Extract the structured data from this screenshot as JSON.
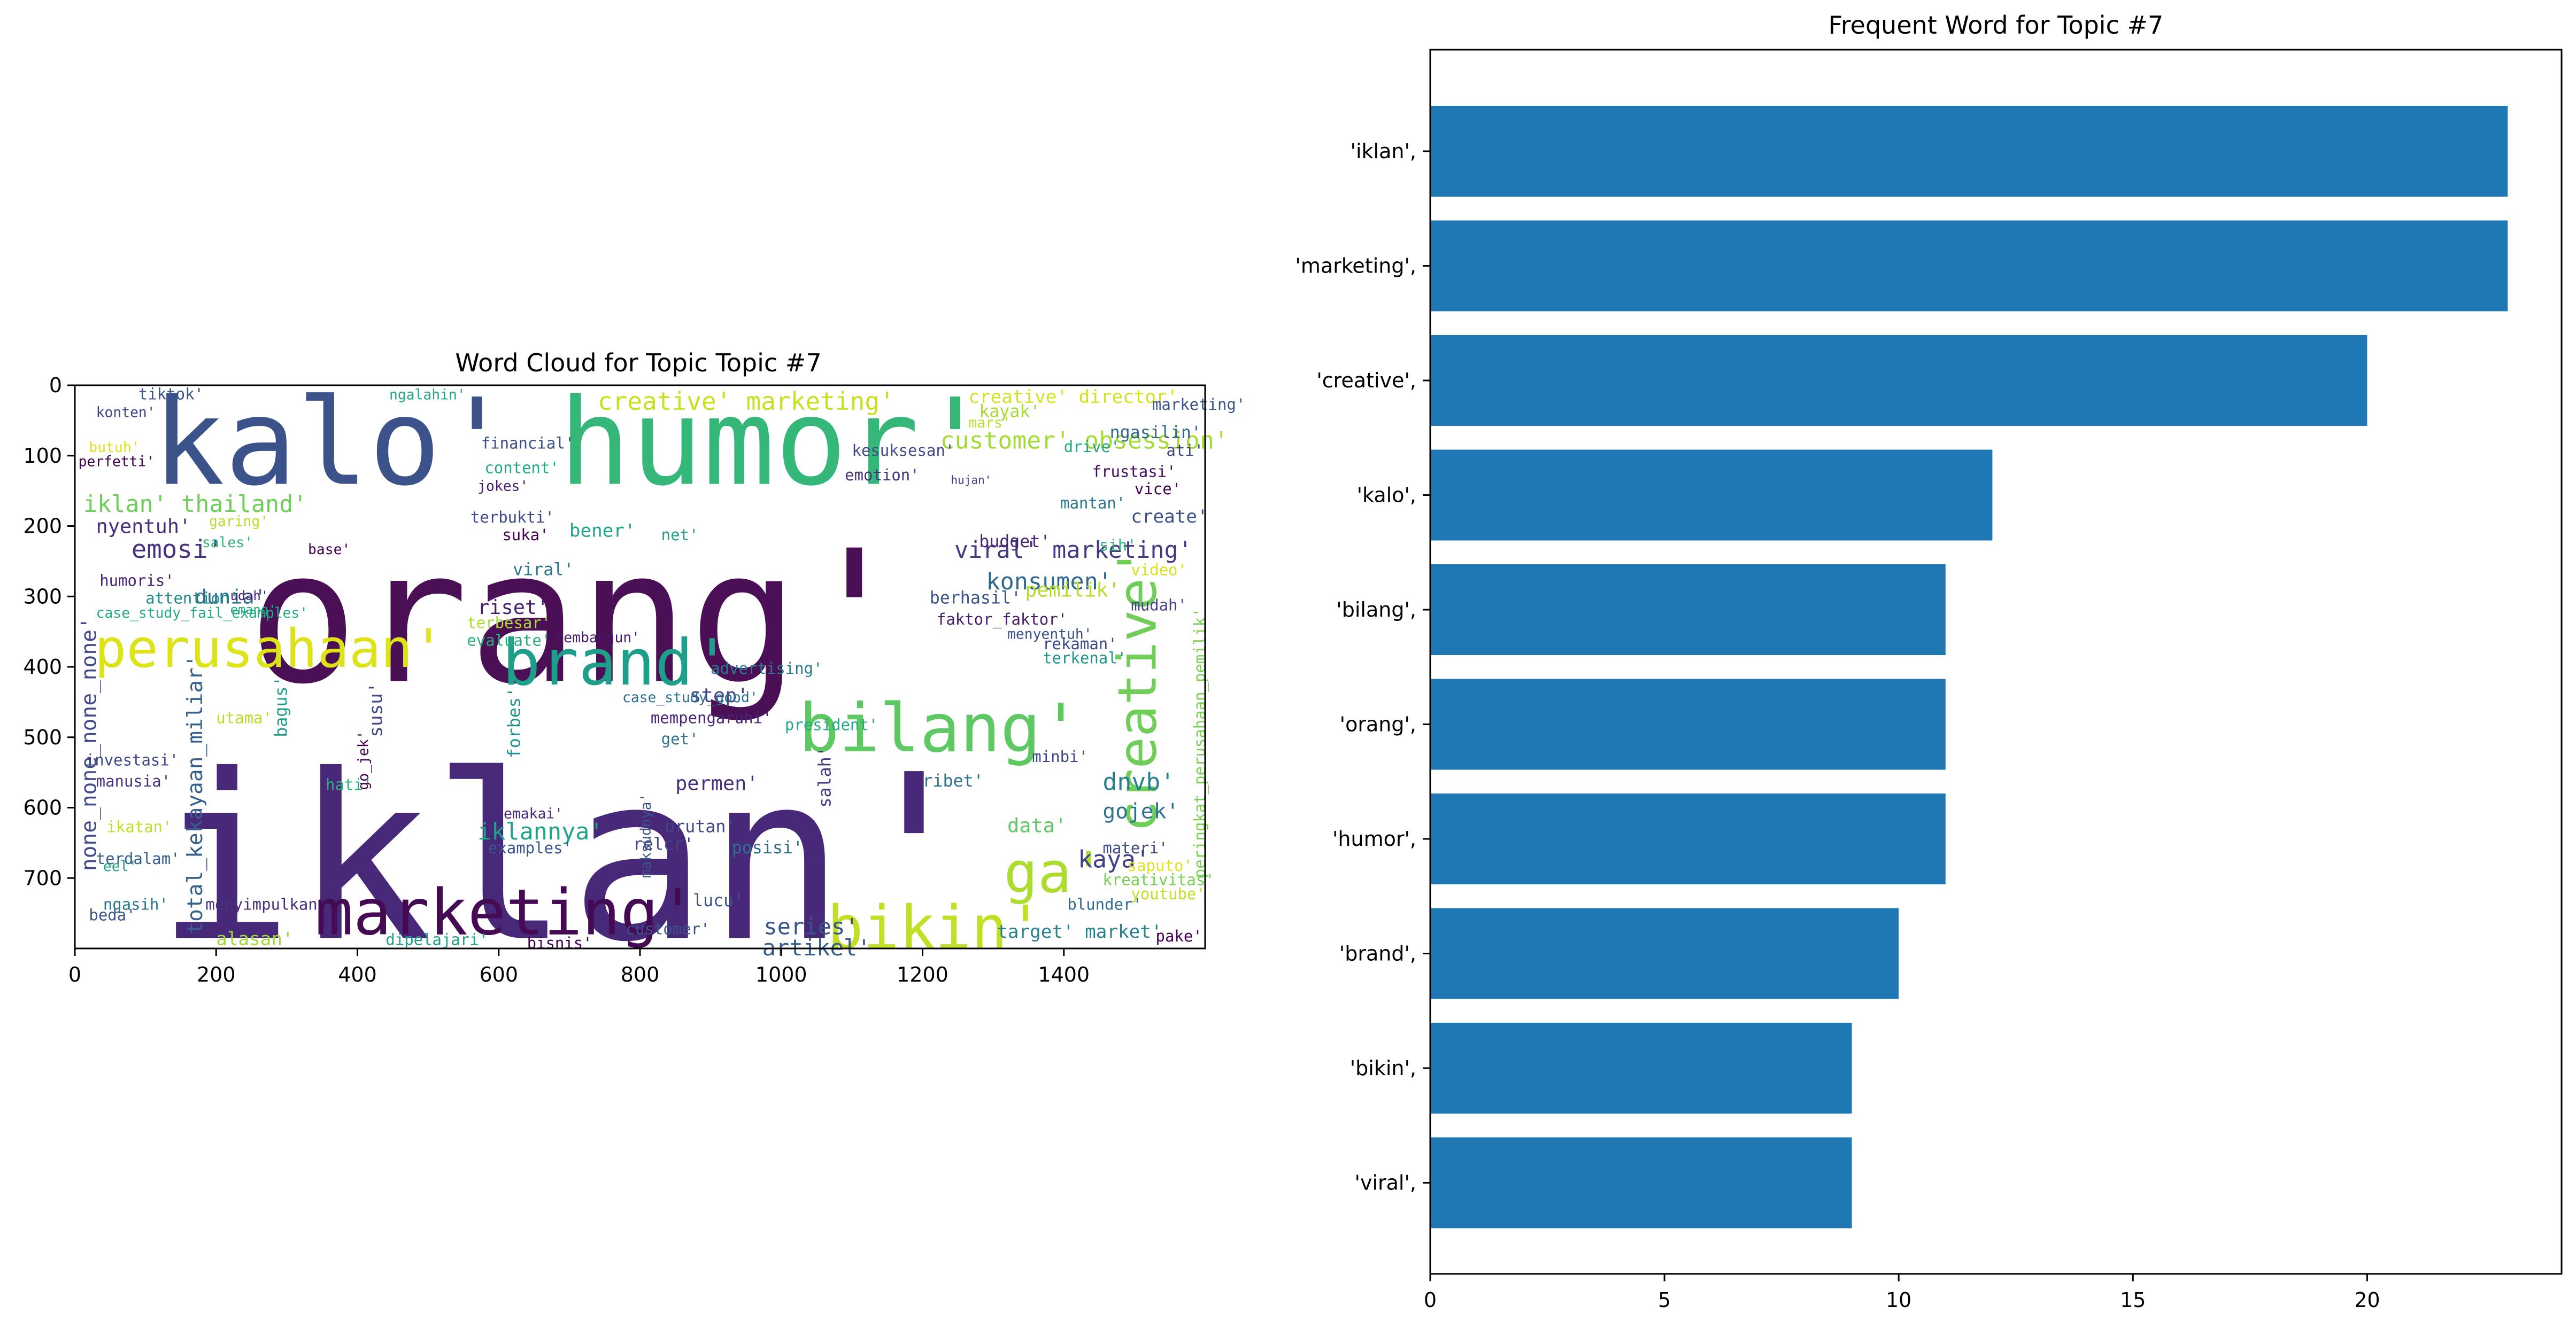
{
  "chart_data": [
    {
      "type": "wordcloud",
      "title": "Word Cloud for Topic Topic #7",
      "x_ticks": [
        "0",
        "200",
        "400",
        "600",
        "800",
        "1000",
        "1200",
        "1400"
      ],
      "y_ticks": [
        "0",
        "100",
        "200",
        "300",
        "400",
        "500",
        "600",
        "700"
      ],
      "xlim": [
        0,
        1600
      ],
      "ylim": [
        800,
        0
      ],
      "words": [
        {
          "text": "orang'",
          "color": "#4b0f55"
        },
        {
          "text": "iklan'",
          "color": "#482979"
        },
        {
          "text": "humor'",
          "color": "#35b779"
        },
        {
          "text": "kalo'",
          "color": "#3b528b"
        },
        {
          "text": "marketing'",
          "color": "#440a54"
        },
        {
          "text": "perusahaan'",
          "color": "#dce319"
        },
        {
          "text": "brand'",
          "color": "#1f9e89"
        },
        {
          "text": "bilang'",
          "color": "#5ec962"
        },
        {
          "text": "creative'",
          "color": "#6ece58"
        },
        {
          "text": "bikin'",
          "color": "#c2df23"
        },
        {
          "text": "ga'",
          "color": "#addc30"
        },
        {
          "text": "creative' marketing'",
          "color": "#c8e020"
        },
        {
          "text": "customer' obsession'",
          "color": "#a5db36"
        },
        {
          "text": "creative' director'",
          "color": "#d2e21b"
        },
        {
          "text": "iklan' thailand'",
          "color": "#6ece58"
        },
        {
          "text": "viral' marketing'",
          "color": "#443983"
        },
        {
          "text": "konsumen'",
          "color": "#31688e"
        },
        {
          "text": "total_kekayaan_miliar'",
          "color": "#35608d"
        },
        {
          "text": "none_none_none_none'",
          "color": "#3e4a89"
        },
        {
          "text": "peringkat_perusahaan_pemilik'",
          "color": "#7ad151"
        },
        {
          "text": "iklannya'",
          "color": "#20a386"
        },
        {
          "text": "kaya'",
          "color": "#424086"
        },
        {
          "text": "dnvb'",
          "color": "#277f8e"
        },
        {
          "text": "gojek'",
          "color": "#2c728e"
        },
        {
          "text": "series'",
          "color": "#3a548c"
        },
        {
          "text": "artikel'",
          "color": "#355f8d"
        },
        {
          "text": "alasan'",
          "color": "#a0da39"
        },
        {
          "text": "emosi'",
          "color": "#46327e"
        },
        {
          "text": "nyentuh'",
          "color": "#472c7a"
        },
        {
          "text": "dunia'",
          "color": "#2e6e8e"
        },
        {
          "text": "tiktok'",
          "color": "#39558c"
        },
        {
          "text": "konten'",
          "color": "#3e4989"
        },
        {
          "text": "financial'",
          "color": "#3b518b"
        },
        {
          "text": "content'",
          "color": "#22a884"
        },
        {
          "text": "jokes'",
          "color": "#48186a"
        },
        {
          "text": "bener'",
          "color": "#1fa287"
        },
        {
          "text": "riset'",
          "color": "#481f70"
        },
        {
          "text": "viral'",
          "color": "#2a788e"
        },
        {
          "text": "step'",
          "color": "#424086"
        },
        {
          "text": "advertising'",
          "color": "#297b8e"
        },
        {
          "text": "permen'",
          "color": "#46307e"
        },
        {
          "text": "urutan'",
          "color": "#3f4788"
        },
        {
          "text": "salah'",
          "color": "#453882"
        },
        {
          "text": "data'",
          "color": "#5ec962"
        },
        {
          "text": "ribet'",
          "color": "#2d708e"
        },
        {
          "text": "minbi'",
          "color": "#3e4989"
        },
        {
          "text": "pemilik'",
          "color": "#b5de2b"
        },
        {
          "text": "berhasil'",
          "color": "#3a548c"
        },
        {
          "text": "faktor_faktor'",
          "color": "#481a6c"
        },
        {
          "text": "menyentuh'",
          "color": "#3b518b"
        },
        {
          "text": "terkenal'",
          "color": "#1f958b"
        },
        {
          "text": "rekaman'",
          "color": "#3e4c8a"
        },
        {
          "text": "mudah'",
          "color": "#414487"
        },
        {
          "text": "create'",
          "color": "#3b528b"
        },
        {
          "text": "budget'",
          "color": "#482475"
        },
        {
          "text": "video'",
          "color": "#d8e219"
        },
        {
          "text": "sih'",
          "color": "#2fb47c"
        },
        {
          "text": "mantan'",
          "color": "#2a788e"
        },
        {
          "text": "vice'",
          "color": "#440154"
        },
        {
          "text": "frustasi'",
          "color": "#471063"
        },
        {
          "text": "ngasilin'",
          "color": "#30688e"
        },
        {
          "text": "ati'",
          "color": "#3f4788"
        },
        {
          "text": "kayak'",
          "color": "#a8db34"
        },
        {
          "text": "drive'",
          "color": "#22a884"
        },
        {
          "text": "kesuksesan'",
          "color": "#3e4a89"
        },
        {
          "text": "emotion'",
          "color": "#46337f"
        },
        {
          "text": "mars'",
          "color": "#b8de29"
        },
        {
          "text": "hujan'",
          "color": "#424086"
        },
        {
          "text": "president'",
          "color": "#22a884"
        },
        {
          "text": "mempengaruhi'",
          "color": "#482576"
        },
        {
          "text": "case_study_good'",
          "color": "#2d708e"
        },
        {
          "text": "get'",
          "color": "#2c738e"
        },
        {
          "text": "maksudnya'",
          "color": "#3a548c"
        },
        {
          "text": "relcr'",
          "color": "#414487"
        },
        {
          "text": "posisi'",
          "color": "#2e6f8e"
        },
        {
          "text": "lucu'",
          "color": "#3b528b"
        },
        {
          "text": "customer'",
          "color": "#3b528b"
        },
        {
          "text": "bisnis'",
          "color": "#440154"
        },
        {
          "text": "dipelajari'",
          "color": "#1f9e89"
        },
        {
          "text": "target' market'",
          "color": "#26828e"
        },
        {
          "text": "pake'",
          "color": "#440154"
        },
        {
          "text": "youtube'",
          "color": "#c0df25"
        },
        {
          "text": "blunder'",
          "color": "#2f6b8e"
        },
        {
          "text": "kreativitas'",
          "color": "#75d054"
        },
        {
          "text": "saputo'",
          "color": "#dde318"
        },
        {
          "text": "materi'",
          "color": "#3f4788"
        },
        {
          "text": "marketing'",
          "color": "#3b528b"
        },
        {
          "text": "menyimpulkan'",
          "color": "#46307e"
        },
        {
          "text": "examples'",
          "color": "#3a548c"
        },
        {
          "text": "memakai'",
          "color": "#482878"
        },
        {
          "text": "membangun'",
          "color": "#48186a"
        },
        {
          "text": "terbesar'",
          "color": "#aadc32"
        },
        {
          "text": "evaluate'",
          "color": "#29af7f"
        },
        {
          "text": "suka'",
          "color": "#440154"
        },
        {
          "text": "terbukti'",
          "color": "#3e4989"
        },
        {
          "text": "net'",
          "color": "#1fa287"
        },
        {
          "text": "sales'",
          "color": "#2fb47c"
        },
        {
          "text": "garing'",
          "color": "#b8de29"
        },
        {
          "text": "emang'",
          "color": "#22a884"
        },
        {
          "text": "udah'",
          "color": "#482173"
        },
        {
          "text": "attention'",
          "color": "#238a8d"
        },
        {
          "text": "case_study_fail_examples'",
          "color": "#25ab82"
        },
        {
          "text": "humoris'",
          "color": "#482576"
        },
        {
          "text": "investasi'",
          "color": "#3e4989"
        },
        {
          "text": "manusia'",
          "color": "#46327e"
        },
        {
          "text": "ikatan'",
          "color": "#c2df23"
        },
        {
          "text": "terdalam'",
          "color": "#34618d"
        },
        {
          "text": "eel'",
          "color": "#1f9e89"
        },
        {
          "text": "ngasih'",
          "color": "#2a788e"
        },
        {
          "text": "beda'",
          "color": "#3b528b"
        },
        {
          "text": "butuh'",
          "color": "#dde318"
        },
        {
          "text": "perfetti'",
          "color": "#440154"
        },
        {
          "text": "bagus'",
          "color": "#1f9e89"
        },
        {
          "text": "utama'",
          "color": "#b5de2b"
        },
        {
          "text": "forbes'",
          "color": "#21918c"
        },
        {
          "text": "susu'",
          "color": "#404688"
        },
        {
          "text": "go_jek'",
          "color": "#440154"
        },
        {
          "text": "hati'",
          "color": "#2db27d"
        },
        {
          "text": "base'",
          "color": "#440154"
        },
        {
          "text": "ngalahin'",
          "color": "#22a884"
        }
      ]
    },
    {
      "type": "bar",
      "orientation": "horizontal",
      "title": "Frequent Word for Topic #7",
      "categories": [
        "'iklan',",
        "'marketing',",
        "'creative',",
        "'kalo',",
        "'bilang',",
        "'orang',",
        "'humor',",
        "'brand',",
        "'bikin',",
        "'viral',"
      ],
      "values": [
        23,
        23,
        20,
        12,
        11,
        11,
        11,
        10,
        9,
        9
      ],
      "x_ticks": [
        "0",
        "5",
        "10",
        "15",
        "20"
      ],
      "xlim": [
        0,
        24.15
      ],
      "bar_color": "#1f77b4"
    }
  ]
}
